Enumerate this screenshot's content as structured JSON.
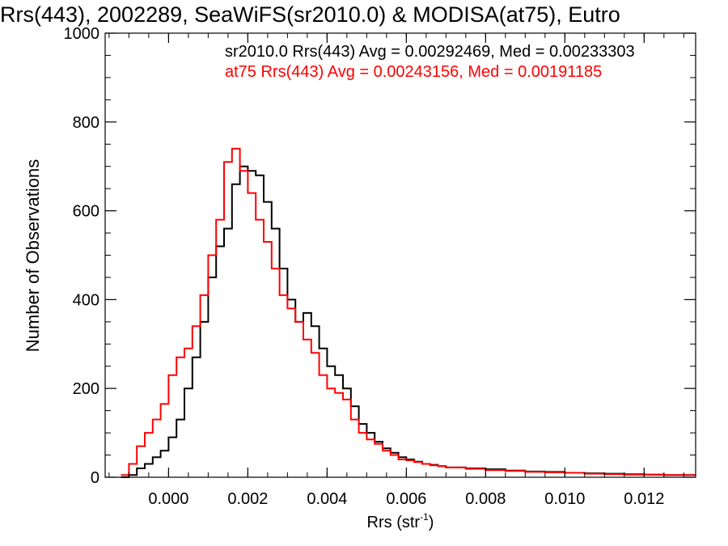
{
  "chart_data": {
    "type": "line",
    "title": "Rrs(443), 2002289, SeaWiFS(sr2010.0) & MODISA(at75), Eutro",
    "xlabel": "Rrs (str",
    "xlabel_sup": "-1",
    "xlabel_end": ")",
    "ylabel": "Number of Observations",
    "xlim": [
      -0.0016,
      0.0133
    ],
    "ylim": [
      0,
      1000
    ],
    "xticks": [
      0.0,
      0.002,
      0.004,
      0.006,
      0.008,
      0.01,
      0.012
    ],
    "xtick_labels": [
      "0.000",
      "0.002",
      "0.004",
      "0.006",
      "0.008",
      "0.010",
      "0.012"
    ],
    "yticks": [
      0,
      200,
      400,
      600,
      800,
      1000
    ],
    "ytick_labels": [
      "0",
      "200",
      "400",
      "600",
      "800",
      "1000"
    ],
    "grid": false,
    "step": true,
    "series": [
      {
        "name": "sr2010.0",
        "color": "#000000",
        "label": "sr2010.0 Rrs(443) Avg = 0.00292469, Med = 0.00233303",
        "x": [
          -0.0012,
          -0.001,
          -0.0008,
          -0.0006,
          -0.0004,
          -0.0002,
          0.0,
          0.0002,
          0.0004,
          0.0006,
          0.0008,
          0.001,
          0.0012,
          0.0014,
          0.0016,
          0.0018,
          0.002,
          0.0022,
          0.0024,
          0.0026,
          0.0028,
          0.003,
          0.0032,
          0.0034,
          0.0036,
          0.0038,
          0.004,
          0.0042,
          0.0044,
          0.0046,
          0.0048,
          0.005,
          0.0052,
          0.0054,
          0.0056,
          0.0058,
          0.006,
          0.0062,
          0.0064,
          0.0066,
          0.0068,
          0.007,
          0.0075,
          0.008,
          0.0085,
          0.009,
          0.0095,
          0.01,
          0.0105,
          0.011,
          0.0115,
          0.012,
          0.0125,
          0.013
        ],
        "y": [
          0,
          5,
          20,
          30,
          45,
          60,
          90,
          130,
          200,
          270,
          350,
          450,
          520,
          560,
          660,
          700,
          690,
          680,
          620,
          560,
          470,
          400,
          350,
          370,
          340,
          290,
          250,
          230,
          200,
          160,
          120,
          100,
          80,
          65,
          55,
          45,
          40,
          35,
          30,
          28,
          25,
          22,
          20,
          18,
          15,
          13,
          12,
          10,
          9,
          8,
          7,
          6,
          5,
          5
        ]
      },
      {
        "name": "at75",
        "color": "#ff0000",
        "label": "at75 Rrs(443) Avg = 0.00243156, Med = 0.00191185",
        "x": [
          -0.0012,
          -0.001,
          -0.0008,
          -0.0006,
          -0.0004,
          -0.0002,
          0.0,
          0.0002,
          0.0004,
          0.0006,
          0.0008,
          0.001,
          0.0012,
          0.0014,
          0.0016,
          0.0018,
          0.002,
          0.0022,
          0.0024,
          0.0026,
          0.0028,
          0.003,
          0.0032,
          0.0034,
          0.0036,
          0.0038,
          0.004,
          0.0042,
          0.0044,
          0.0046,
          0.0048,
          0.005,
          0.0052,
          0.0054,
          0.0056,
          0.0058,
          0.006,
          0.0062,
          0.0064,
          0.0066,
          0.0068,
          0.007,
          0.0075,
          0.008,
          0.0085,
          0.009,
          0.0095,
          0.01,
          0.0105,
          0.011,
          0.0115,
          0.012,
          0.0125,
          0.013
        ],
        "y": [
          5,
          30,
          70,
          100,
          130,
          165,
          230,
          270,
          290,
          340,
          410,
          500,
          580,
          710,
          740,
          690,
          640,
          580,
          530,
          470,
          410,
          380,
          350,
          310,
          280,
          230,
          200,
          190,
          175,
          130,
          100,
          85,
          75,
          60,
          50,
          40,
          38,
          34,
          30,
          27,
          25,
          22,
          19,
          16,
          14,
          12,
          11,
          10,
          8,
          7,
          6,
          6,
          5,
          5
        ]
      }
    ]
  }
}
